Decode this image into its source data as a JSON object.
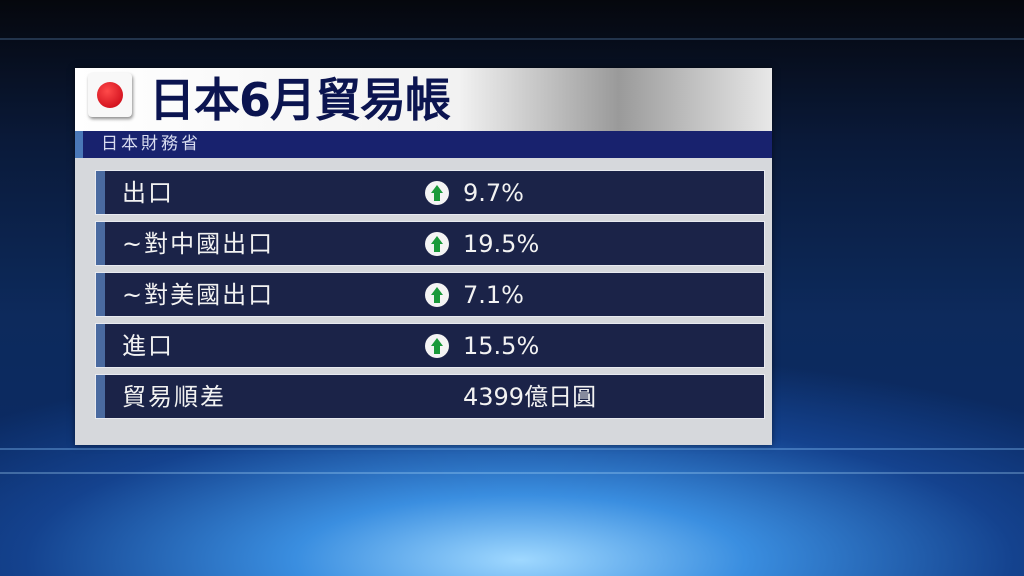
{
  "title": "日本6月貿易帳",
  "source": "日本財務省",
  "flag_icon": "japan-flag-icon",
  "colors": {
    "title": "#0b1450",
    "sub_bar": "#18226e",
    "row_bg": "#1b2348",
    "arrow_up": "#1a9a3a"
  },
  "rows": [
    {
      "label": "出口",
      "value": "9.7%",
      "trend": "up"
    },
    {
      "label": "~對中國出口",
      "value": "19.5%",
      "trend": "up"
    },
    {
      "label": "~對美國出口",
      "value": "7.1%",
      "trend": "up"
    },
    {
      "label": "進口",
      "value": "15.5%",
      "trend": "up"
    },
    {
      "label": "貿易順差",
      "value": "4399億日圓",
      "trend": null
    }
  ]
}
